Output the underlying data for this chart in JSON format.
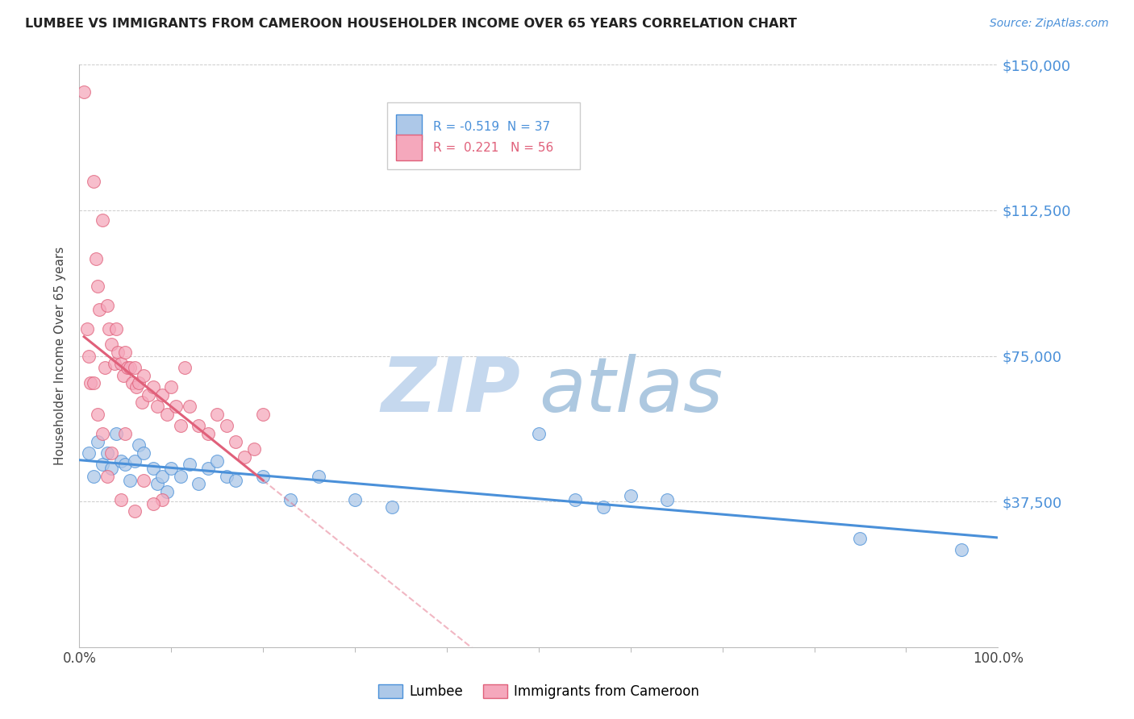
{
  "title": "LUMBEE VS IMMIGRANTS FROM CAMEROON HOUSEHOLDER INCOME OVER 65 YEARS CORRELATION CHART",
  "source": "Source: ZipAtlas.com",
  "ylabel": "Householder Income Over 65 years",
  "xlim": [
    0,
    1.0
  ],
  "ylim": [
    0,
    150000
  ],
  "yticks": [
    0,
    37500,
    75000,
    112500,
    150000
  ],
  "ytick_labels": [
    "",
    "$37,500",
    "$75,000",
    "$112,500",
    "$150,000"
  ],
  "xtick_labels": [
    "0.0%",
    "100.0%"
  ],
  "legend_r_lumbee": "-0.519",
  "legend_n_lumbee": "37",
  "legend_r_cameroon": "0.221",
  "legend_n_cameroon": "56",
  "lumbee_color": "#adc8e8",
  "cameroon_color": "#f5a8bc",
  "lumbee_line_color": "#4a90d9",
  "cameroon_line_color": "#e0607a",
  "watermark_zip": "ZIP",
  "watermark_atlas": "atlas",
  "watermark_color_zip": "#c5d8ee",
  "watermark_color_atlas": "#adc8e0",
  "lumbee_x": [
    0.01,
    0.015,
    0.02,
    0.025,
    0.03,
    0.035,
    0.04,
    0.045,
    0.05,
    0.055,
    0.06,
    0.065,
    0.07,
    0.08,
    0.085,
    0.09,
    0.095,
    0.1,
    0.11,
    0.12,
    0.13,
    0.14,
    0.15,
    0.16,
    0.17,
    0.2,
    0.23,
    0.26,
    0.3,
    0.34,
    0.5,
    0.54,
    0.57,
    0.6,
    0.64,
    0.85,
    0.96
  ],
  "lumbee_y": [
    50000,
    44000,
    53000,
    47000,
    50000,
    46000,
    55000,
    48000,
    47000,
    43000,
    48000,
    52000,
    50000,
    46000,
    42000,
    44000,
    40000,
    46000,
    44000,
    47000,
    42000,
    46000,
    48000,
    44000,
    43000,
    44000,
    38000,
    44000,
    38000,
    36000,
    55000,
    38000,
    36000,
    39000,
    38000,
    28000,
    25000
  ],
  "cameroon_x": [
    0.005,
    0.008,
    0.01,
    0.012,
    0.015,
    0.018,
    0.02,
    0.022,
    0.025,
    0.028,
    0.03,
    0.032,
    0.035,
    0.038,
    0.04,
    0.042,
    0.045,
    0.048,
    0.05,
    0.052,
    0.055,
    0.058,
    0.06,
    0.062,
    0.065,
    0.068,
    0.07,
    0.075,
    0.08,
    0.085,
    0.09,
    0.095,
    0.1,
    0.105,
    0.11,
    0.115,
    0.12,
    0.13,
    0.14,
    0.15,
    0.16,
    0.17,
    0.18,
    0.19,
    0.2,
    0.05,
    0.07,
    0.09,
    0.035,
    0.025,
    0.015,
    0.02,
    0.03,
    0.045,
    0.06,
    0.08
  ],
  "cameroon_y": [
    143000,
    82000,
    75000,
    68000,
    120000,
    100000,
    93000,
    87000,
    110000,
    72000,
    88000,
    82000,
    78000,
    73000,
    82000,
    76000,
    73000,
    70000,
    76000,
    72000,
    72000,
    68000,
    72000,
    67000,
    68000,
    63000,
    70000,
    65000,
    67000,
    62000,
    65000,
    60000,
    67000,
    62000,
    57000,
    72000,
    62000,
    57000,
    55000,
    60000,
    57000,
    53000,
    49000,
    51000,
    60000,
    55000,
    43000,
    38000,
    50000,
    55000,
    68000,
    60000,
    44000,
    38000,
    35000,
    37000
  ]
}
